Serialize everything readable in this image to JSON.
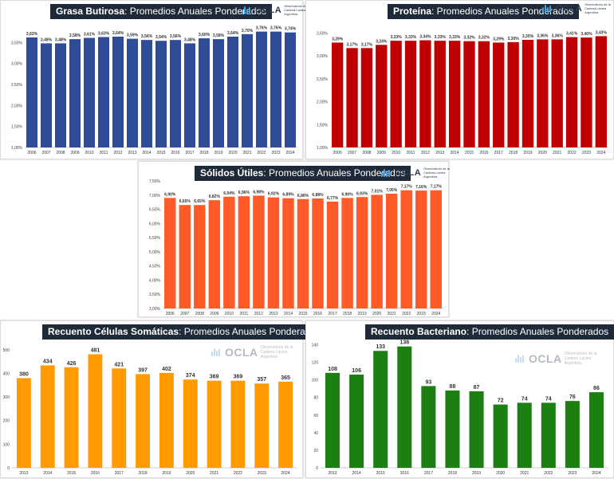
{
  "logo": {
    "name": "OCLA",
    "tagline": "Observatorio de la Cadena Láctea Argentina"
  },
  "charts": [
    {
      "id": "grasa",
      "title_bold": "Grasa Butirosa",
      "title_rest": ": Promedios Anuales Ponderados",
      "color": "#2e4c97",
      "type": "bar",
      "categories": [
        "2006",
        "2007",
        "2008",
        "2009",
        "2010",
        "2011",
        "2012",
        "2013",
        "2014",
        "2015",
        "2016",
        "2017",
        "2018",
        "2019",
        "2020",
        "2021",
        "2022",
        "2023",
        "2024"
      ],
      "values": [
        3.62,
        3.48,
        3.48,
        3.58,
        3.61,
        3.63,
        3.64,
        3.59,
        3.56,
        3.54,
        3.56,
        3.48,
        3.6,
        3.58,
        3.64,
        3.7,
        3.76,
        3.76,
        3.74
      ],
      "labels": [
        "3,62%",
        "3,48%",
        "3,48%",
        "3,58%",
        "3,61%",
        "3,63%",
        "3,64%",
        "3,59%",
        "3,56%",
        "3,54%",
        "3,56%",
        "3,48%",
        "3,60%",
        "3,58%",
        "3,64%",
        "3,70%",
        "3,76%",
        "3,76%",
        "3,74%"
      ],
      "ylim": [
        1.0,
        4.0
      ],
      "yticks": [
        1.0,
        1.5,
        2.0,
        2.5,
        3.0,
        3.5
      ],
      "yticklabels": [
        "1,00%",
        "1,50%",
        "2,00%",
        "2,50%",
        "3,00%",
        "3,50%"
      ]
    },
    {
      "id": "proteina",
      "title_bold": "Proteína",
      "title_rest": ": Promedios Anuales Ponderados",
      "color": "#c00000",
      "type": "bar",
      "categories": [
        "2006",
        "2007",
        "2008",
        "2009",
        "2010",
        "2011",
        "2012",
        "2013",
        "2014",
        "2015",
        "2016",
        "2017",
        "2018",
        "2019",
        "2020",
        "2021",
        "2022",
        "2023",
        "2024"
      ],
      "values": [
        3.29,
        3.17,
        3.17,
        3.24,
        3.33,
        3.33,
        3.34,
        3.33,
        3.33,
        3.32,
        3.32,
        3.29,
        3.3,
        3.35,
        3.36,
        3.36,
        3.41,
        3.4,
        3.43
      ],
      "labels": [
        "3,29%",
        "3,17%",
        "3,17%",
        "3,24%",
        "3,33%",
        "3,33%",
        "3,34%",
        "3,33%",
        "3,33%",
        "3,32%",
        "3,32%",
        "3,29%",
        "3,30%",
        "3,35%",
        "3,36%",
        "3,36%",
        "3,41%",
        "3,40%",
        "3,43%"
      ],
      "ylim": [
        1.0,
        3.75
      ],
      "yticks": [
        1.0,
        1.5,
        2.0,
        2.5,
        3.0,
        3.5
      ],
      "yticklabels": [
        "1,00%",
        "1,50%",
        "2,00%",
        "2,50%",
        "3,00%",
        "3,50%"
      ]
    },
    {
      "id": "solidos",
      "title_bold": "Sólidos Útiles",
      "title_rest": ": Promedios Anuales Ponderados",
      "color": "#ff5a28",
      "type": "bar",
      "categories": [
        "2006",
        "2007",
        "2008",
        "2009",
        "2010",
        "2011",
        "2012",
        "2013",
        "2014",
        "2015",
        "2016",
        "2017",
        "2018",
        "2019",
        "2020",
        "2021",
        "2022",
        "2023",
        "2024"
      ],
      "values": [
        6.9,
        6.65,
        6.65,
        6.82,
        6.94,
        6.96,
        6.98,
        6.92,
        6.89,
        6.86,
        6.88,
        6.77,
        6.9,
        6.93,
        7.01,
        7.05,
        7.17,
        7.16,
        7.17
      ],
      "labels": [
        "6,90%",
        "6,65%",
        "6,65%",
        "6,82%",
        "6,94%",
        "6,96%",
        "6,98%",
        "6,92%",
        "6,89%",
        "6,86%",
        "6,88%",
        "6,77%",
        "6,90%",
        "6,93%",
        "7,01%",
        "7,05%",
        "7,17%",
        "7,16%",
        "7,17%"
      ],
      "ylim": [
        3.0,
        7.5
      ],
      "yticks": [
        3.0,
        3.5,
        4.0,
        4.5,
        5.0,
        5.5,
        6.0,
        6.5,
        7.0,
        7.5
      ],
      "yticklabels": [
        "3,00%",
        "3,50%",
        "4,00%",
        "4,50%",
        "5,00%",
        "5,50%",
        "6,00%",
        "6,50%",
        "7,00%",
        "7,50%"
      ]
    },
    {
      "id": "celulas",
      "title_bold": "Recuento Células Somáticas",
      "title_rest": ": Promedios Anuales Ponderados",
      "color": "#ff9b00",
      "type": "bar",
      "categories": [
        "2013",
        "2014",
        "2015",
        "2016",
        "2017",
        "2018",
        "2019",
        "2020",
        "2021",
        "2022",
        "2023",
        "2024"
      ],
      "values": [
        380,
        434,
        426,
        481,
        421,
        397,
        402,
        374,
        369,
        369,
        357,
        365
      ],
      "labels": [
        "380",
        "434",
        "426",
        "481",
        "421",
        "397",
        "402",
        "374",
        "369",
        "369",
        "357",
        "365"
      ],
      "ylim": [
        0,
        540
      ],
      "yticks": [
        0,
        100,
        200,
        300,
        400,
        500
      ],
      "yticklabels": [
        "0",
        "100",
        "200",
        "300",
        "400",
        "500"
      ]
    },
    {
      "id": "bacteriano",
      "title_bold": "Recuento Bacteriano",
      "title_rest": ": Promedios Anuales Ponderados",
      "color": "#1b7f12",
      "type": "bar",
      "categories": [
        "2013",
        "2014",
        "2015",
        "2016",
        "2017",
        "2018",
        "2019",
        "2020",
        "2021",
        "2022",
        "2023",
        "2024"
      ],
      "values": [
        108,
        106,
        133,
        138,
        93,
        88,
        87,
        72,
        74,
        74,
        76,
        86
      ],
      "labels": [
        "108",
        "106",
        "133",
        "138",
        "93",
        "88",
        "87",
        "72",
        "74",
        "74",
        "76",
        "86"
      ],
      "ylim": [
        0,
        145
      ],
      "yticks": [
        0,
        20,
        40,
        60,
        80,
        100,
        120,
        140
      ],
      "yticklabels": [
        "0",
        "20",
        "40",
        "60",
        "80",
        "100",
        "120",
        "140"
      ]
    }
  ]
}
